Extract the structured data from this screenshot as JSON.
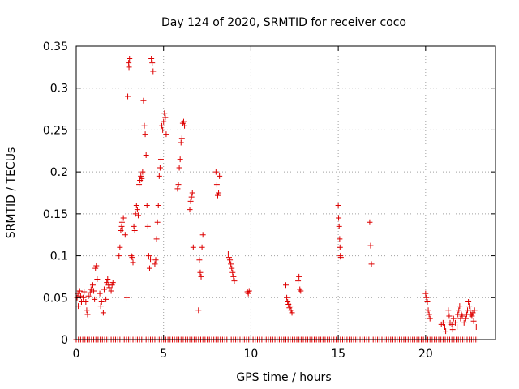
{
  "chart_data": {
    "type": "scatter",
    "title": "Day 124 of 2020, SRMTID for receiver coco",
    "xlabel": "GPS time / hours",
    "ylabel": "SRMTID / TECUs",
    "xlim": [
      0,
      24
    ],
    "ylim": [
      0,
      0.35
    ],
    "xticks": [
      0,
      5,
      10,
      15,
      20
    ],
    "xtick_labels": [
      "0",
      "5",
      "10",
      "15",
      "20"
    ],
    "yticks": [
      0,
      0.05,
      0.1,
      0.15,
      0.2,
      0.25,
      0.3,
      0.35
    ],
    "ytick_labels": [
      "0",
      "0.05",
      "0.1",
      "0.15",
      "0.2",
      "0.25",
      "0.3",
      "0.35"
    ],
    "grid": true,
    "marker": "+",
    "marker_color": "#dd0000",
    "baseline": {
      "y": 0,
      "x_start": 0,
      "x_end": 23.0,
      "step": 0.125
    },
    "series": [
      {
        "name": "SRMTID",
        "points": [
          [
            0.05,
            0.05
          ],
          [
            0.1,
            0.055
          ],
          [
            0.12,
            0.04
          ],
          [
            0.2,
            0.058
          ],
          [
            0.25,
            0.052
          ],
          [
            0.3,
            0.045
          ],
          [
            0.4,
            0.05
          ],
          [
            0.45,
            0.057
          ],
          [
            0.55,
            0.045
          ],
          [
            0.6,
            0.035
          ],
          [
            0.65,
            0.03
          ],
          [
            0.7,
            0.052
          ],
          [
            0.8,
            0.056
          ],
          [
            0.85,
            0.06
          ],
          [
            0.95,
            0.065
          ],
          [
            1.0,
            0.058
          ],
          [
            1.05,
            0.048
          ],
          [
            1.1,
            0.085
          ],
          [
            1.15,
            0.088
          ],
          [
            1.2,
            0.072
          ],
          [
            1.35,
            0.055
          ],
          [
            1.4,
            0.04
          ],
          [
            1.45,
            0.045
          ],
          [
            1.55,
            0.032
          ],
          [
            1.6,
            0.06
          ],
          [
            1.7,
            0.048
          ],
          [
            1.75,
            0.068
          ],
          [
            1.8,
            0.072
          ],
          [
            1.85,
            0.065
          ],
          [
            1.9,
            0.062
          ],
          [
            2.0,
            0.058
          ],
          [
            2.05,
            0.065
          ],
          [
            2.1,
            0.068
          ],
          [
            2.45,
            0.1
          ],
          [
            2.5,
            0.11
          ],
          [
            2.55,
            0.13
          ],
          [
            2.6,
            0.135
          ],
          [
            2.62,
            0.14
          ],
          [
            2.65,
            0.132
          ],
          [
            2.7,
            0.145
          ],
          [
            2.8,
            0.125
          ],
          [
            2.9,
            0.05
          ],
          [
            2.95,
            0.29
          ],
          [
            3.0,
            0.33
          ],
          [
            3.02,
            0.325
          ],
          [
            3.05,
            0.335
          ],
          [
            3.15,
            0.1
          ],
          [
            3.2,
            0.098
          ],
          [
            3.25,
            0.092
          ],
          [
            3.3,
            0.135
          ],
          [
            3.35,
            0.13
          ],
          [
            3.4,
            0.15
          ],
          [
            3.45,
            0.16
          ],
          [
            3.5,
            0.155
          ],
          [
            3.55,
            0.148
          ],
          [
            3.6,
            0.185
          ],
          [
            3.65,
            0.19
          ],
          [
            3.7,
            0.195
          ],
          [
            3.75,
            0.192
          ],
          [
            3.8,
            0.2
          ],
          [
            3.85,
            0.285
          ],
          [
            3.9,
            0.255
          ],
          [
            3.95,
            0.245
          ],
          [
            4.0,
            0.22
          ],
          [
            4.05,
            0.16
          ],
          [
            4.1,
            0.135
          ],
          [
            4.15,
            0.1
          ],
          [
            4.2,
            0.085
          ],
          [
            4.25,
            0.096
          ],
          [
            4.3,
            0.335
          ],
          [
            4.35,
            0.33
          ],
          [
            4.4,
            0.32
          ],
          [
            4.5,
            0.09
          ],
          [
            4.55,
            0.095
          ],
          [
            4.6,
            0.12
          ],
          [
            4.65,
            0.14
          ],
          [
            4.7,
            0.16
          ],
          [
            4.75,
            0.195
          ],
          [
            4.8,
            0.205
          ],
          [
            4.85,
            0.215
          ],
          [
            4.9,
            0.255
          ],
          [
            4.95,
            0.25
          ],
          [
            5.0,
            0.26
          ],
          [
            5.05,
            0.27
          ],
          [
            5.1,
            0.265
          ],
          [
            5.15,
            0.245
          ],
          [
            5.8,
            0.18
          ],
          [
            5.85,
            0.185
          ],
          [
            5.9,
            0.205
          ],
          [
            5.95,
            0.215
          ],
          [
            6.0,
            0.235
          ],
          [
            6.05,
            0.24
          ],
          [
            6.1,
            0.258
          ],
          [
            6.15,
            0.26
          ],
          [
            6.2,
            0.255
          ],
          [
            6.5,
            0.155
          ],
          [
            6.55,
            0.165
          ],
          [
            6.6,
            0.17
          ],
          [
            6.65,
            0.175
          ],
          [
            6.7,
            0.11
          ],
          [
            7.0,
            0.035
          ],
          [
            7.05,
            0.095
          ],
          [
            7.1,
            0.08
          ],
          [
            7.15,
            0.075
          ],
          [
            7.2,
            0.11
          ],
          [
            7.25,
            0.125
          ],
          [
            8.0,
            0.2
          ],
          [
            8.05,
            0.185
          ],
          [
            8.1,
            0.172
          ],
          [
            8.15,
            0.175
          ],
          [
            8.2,
            0.195
          ],
          [
            8.7,
            0.102
          ],
          [
            8.75,
            0.098
          ],
          [
            8.8,
            0.095
          ],
          [
            8.85,
            0.09
          ],
          [
            8.9,
            0.085
          ],
          [
            8.95,
            0.08
          ],
          [
            9.0,
            0.075
          ],
          [
            9.05,
            0.07
          ],
          [
            9.8,
            0.057
          ],
          [
            9.85,
            0.055
          ],
          [
            9.9,
            0.058
          ],
          [
            12.0,
            0.065
          ],
          [
            12.05,
            0.05
          ],
          [
            12.1,
            0.045
          ],
          [
            12.15,
            0.042
          ],
          [
            12.2,
            0.038
          ],
          [
            12.25,
            0.04
          ],
          [
            12.3,
            0.035
          ],
          [
            12.35,
            0.032
          ],
          [
            12.7,
            0.07
          ],
          [
            12.75,
            0.075
          ],
          [
            12.8,
            0.06
          ],
          [
            12.85,
            0.058
          ],
          [
            15.0,
            0.16
          ],
          [
            15.02,
            0.145
          ],
          [
            15.05,
            0.135
          ],
          [
            15.08,
            0.12
          ],
          [
            15.1,
            0.11
          ],
          [
            15.12,
            0.1
          ],
          [
            15.15,
            0.098
          ],
          [
            16.8,
            0.14
          ],
          [
            16.85,
            0.112
          ],
          [
            16.9,
            0.09
          ],
          [
            20.0,
            0.055
          ],
          [
            20.05,
            0.05
          ],
          [
            20.1,
            0.045
          ],
          [
            20.15,
            0.035
          ],
          [
            20.2,
            0.03
          ],
          [
            20.25,
            0.025
          ],
          [
            20.9,
            0.018
          ],
          [
            21.0,
            0.02
          ],
          [
            21.1,
            0.015
          ],
          [
            21.15,
            0.01
          ],
          [
            21.3,
            0.035
          ],
          [
            21.35,
            0.028
          ],
          [
            21.4,
            0.02
          ],
          [
            21.5,
            0.018
          ],
          [
            21.55,
            0.012
          ],
          [
            21.6,
            0.025
          ],
          [
            21.7,
            0.02
          ],
          [
            21.8,
            0.015
          ],
          [
            21.85,
            0.03
          ],
          [
            21.9,
            0.035
          ],
          [
            21.95,
            0.04
          ],
          [
            22.0,
            0.025
          ],
          [
            22.05,
            0.03
          ],
          [
            22.1,
            0.028
          ],
          [
            22.2,
            0.02
          ],
          [
            22.3,
            0.025
          ],
          [
            22.35,
            0.03
          ],
          [
            22.4,
            0.035
          ],
          [
            22.45,
            0.045
          ],
          [
            22.5,
            0.04
          ],
          [
            22.55,
            0.035
          ],
          [
            22.6,
            0.03
          ],
          [
            22.65,
            0.028
          ],
          [
            22.7,
            0.032
          ],
          [
            22.75,
            0.022
          ],
          [
            22.8,
            0.035
          ],
          [
            22.9,
            0.015
          ]
        ]
      }
    ]
  }
}
